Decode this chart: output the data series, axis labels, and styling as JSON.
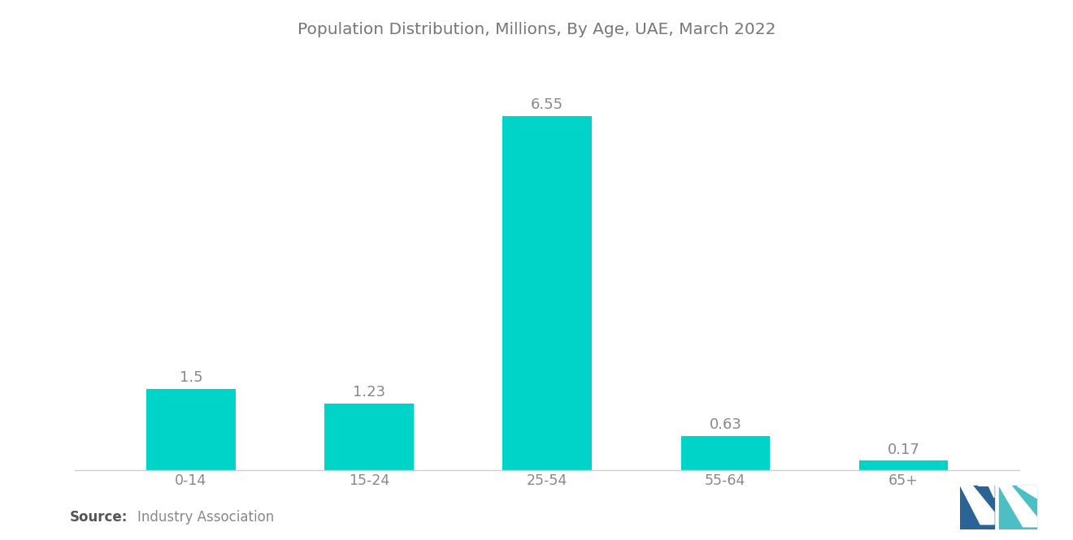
{
  "title": "Population Distribution, Millions, By Age, UAE, March 2022",
  "categories": [
    "0-14",
    "15-24",
    "25-54",
    "55-64",
    "65+"
  ],
  "values": [
    1.5,
    1.23,
    6.55,
    0.63,
    0.17
  ],
  "bar_color": "#00D4C8",
  "background_color": "#ffffff",
  "title_color": "#777777",
  "label_color": "#888888",
  "title_fontsize": 14.5,
  "label_fontsize": 13,
  "tick_fontsize": 12.5,
  "source_fontsize": 12,
  "ylim": [
    0,
    7.5
  ]
}
